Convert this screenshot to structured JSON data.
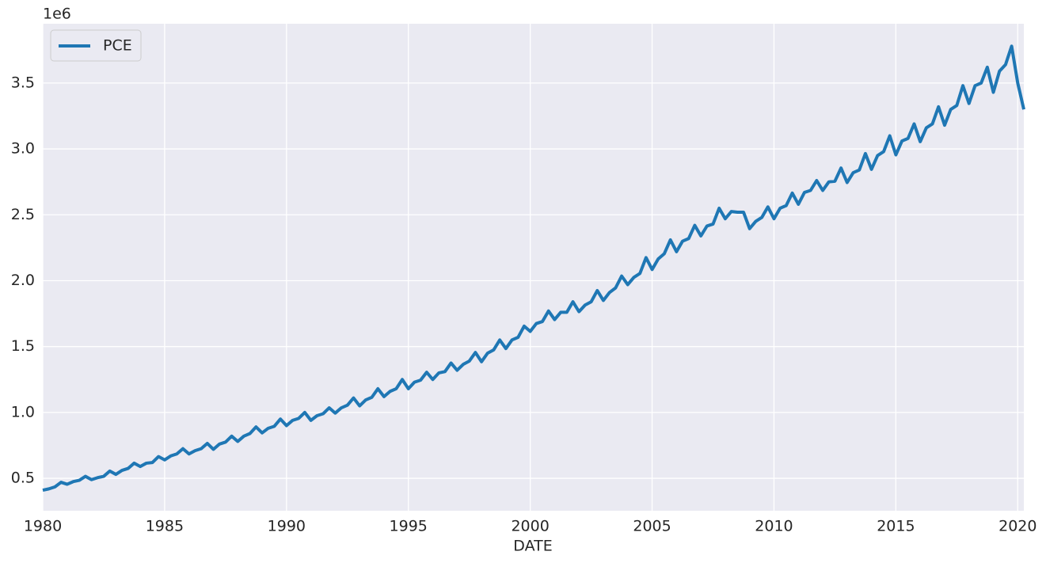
{
  "chart_data": {
    "type": "line",
    "xlabel": "DATE",
    "offset_text": "1e6",
    "x": [
      1980,
      1980.25,
      1980.5,
      1980.75,
      1981,
      1981.25,
      1981.5,
      1981.75,
      1982,
      1982.25,
      1982.5,
      1982.75,
      1983,
      1983.25,
      1983.5,
      1983.75,
      1984,
      1984.25,
      1984.5,
      1984.75,
      1985,
      1985.25,
      1985.5,
      1985.75,
      1986,
      1986.25,
      1986.5,
      1986.75,
      1987,
      1987.25,
      1987.5,
      1987.75,
      1988,
      1988.25,
      1988.5,
      1988.75,
      1989,
      1989.25,
      1989.5,
      1989.75,
      1990,
      1990.25,
      1990.5,
      1990.75,
      1991,
      1991.25,
      1991.5,
      1991.75,
      1992,
      1992.25,
      1992.5,
      1992.75,
      1993,
      1993.25,
      1993.5,
      1993.75,
      1994,
      1994.25,
      1994.5,
      1994.75,
      1995,
      1995.25,
      1995.5,
      1995.75,
      1996,
      1996.25,
      1996.5,
      1996.75,
      1997,
      1997.25,
      1997.5,
      1997.75,
      1998,
      1998.25,
      1998.5,
      1998.75,
      1999,
      1999.25,
      1999.5,
      1999.75,
      2000,
      2000.25,
      2000.5,
      2000.75,
      2001,
      2001.25,
      2001.5,
      2001.75,
      2002,
      2002.25,
      2002.5,
      2002.75,
      2003,
      2003.25,
      2003.5,
      2003.75,
      2004,
      2004.25,
      2004.5,
      2004.75,
      2005,
      2005.25,
      2005.5,
      2005.75,
      2006,
      2006.25,
      2006.5,
      2006.75,
      2007,
      2007.25,
      2007.5,
      2007.75,
      2008,
      2008.25,
      2008.5,
      2008.75,
      2009,
      2009.25,
      2009.5,
      2009.75,
      2010,
      2010.25,
      2010.5,
      2010.75,
      2011,
      2011.25,
      2011.5,
      2011.75,
      2012,
      2012.25,
      2012.5,
      2012.75,
      2013,
      2013.25,
      2013.5,
      2013.75,
      2014,
      2014.25,
      2014.5,
      2014.75,
      2015,
      2015.25,
      2015.5,
      2015.75,
      2016,
      2016.25,
      2016.5,
      2016.75,
      2017,
      2017.25,
      2017.5,
      2017.75,
      2018,
      2018.25,
      2018.5,
      2018.75,
      2019,
      2019.25,
      2019.5,
      2019.75,
      2020,
      2020.25
    ],
    "series": [
      {
        "name": "PCE",
        "color": "#1f77b4",
        "values": [
          0.41,
          0.42,
          0.435,
          0.47,
          0.455,
          0.475,
          0.485,
          0.515,
          0.49,
          0.505,
          0.515,
          0.555,
          0.53,
          0.56,
          0.575,
          0.615,
          0.59,
          0.615,
          0.62,
          0.665,
          0.64,
          0.67,
          0.685,
          0.725,
          0.685,
          0.71,
          0.725,
          0.765,
          0.72,
          0.76,
          0.775,
          0.82,
          0.78,
          0.82,
          0.84,
          0.89,
          0.845,
          0.88,
          0.895,
          0.95,
          0.9,
          0.94,
          0.955,
          1.0,
          0.94,
          0.975,
          0.99,
          1.035,
          0.995,
          1.035,
          1.055,
          1.11,
          1.05,
          1.095,
          1.115,
          1.18,
          1.12,
          1.16,
          1.18,
          1.25,
          1.18,
          1.23,
          1.245,
          1.305,
          1.25,
          1.3,
          1.31,
          1.375,
          1.32,
          1.365,
          1.39,
          1.455,
          1.385,
          1.45,
          1.475,
          1.55,
          1.485,
          1.55,
          1.57,
          1.655,
          1.615,
          1.675,
          1.69,
          1.77,
          1.705,
          1.76,
          1.76,
          1.84,
          1.765,
          1.815,
          1.84,
          1.925,
          1.85,
          1.91,
          1.945,
          2.035,
          1.97,
          2.025,
          2.055,
          2.175,
          2.085,
          2.165,
          2.205,
          2.31,
          2.22,
          2.3,
          2.32,
          2.42,
          2.34,
          2.415,
          2.43,
          2.55,
          2.47,
          2.525,
          2.52,
          2.52,
          2.395,
          2.45,
          2.48,
          2.56,
          2.47,
          2.55,
          2.57,
          2.665,
          2.58,
          2.67,
          2.685,
          2.76,
          2.685,
          2.75,
          2.755,
          2.855,
          2.745,
          2.82,
          2.84,
          2.965,
          2.845,
          2.95,
          2.98,
          3.1,
          2.955,
          3.06,
          3.08,
          3.19,
          3.055,
          3.16,
          3.19,
          3.32,
          3.18,
          3.3,
          3.33,
          3.48,
          3.345,
          3.48,
          3.5,
          3.62,
          3.43,
          3.59,
          3.64,
          3.78,
          3.5,
          3.3
        ]
      }
    ],
    "xlim": [
      1980,
      2020.25
    ],
    "xticks": [
      1980,
      1985,
      1990,
      1995,
      2000,
      2005,
      2010,
      2015,
      2020
    ],
    "ylim": [
      0.254,
      3.95
    ],
    "yticks": [
      0.5,
      {
        "value": 1,
        "label": "1.0"
      },
      1.5,
      {
        "value": 2,
        "label": "2.0"
      },
      2.5,
      {
        "value": 3,
        "label": "3.0"
      },
      3.5
    ],
    "grid": true,
    "legend": "upper-left"
  }
}
